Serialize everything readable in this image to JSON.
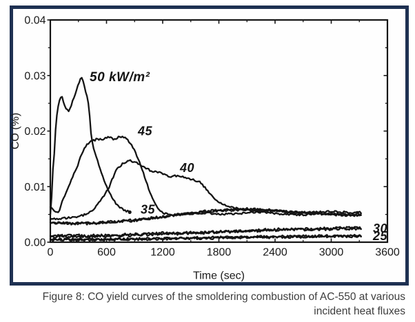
{
  "figure": {
    "caption_line1": "Figure 8: CO yield curves of the smoldering combustion of AC-550 at various",
    "caption_line2": "incident heat fluxes",
    "border_color": "#1e3152"
  },
  "chart_data": {
    "type": "line",
    "title": "",
    "xlabel": "Time (sec)",
    "ylabel": "CO (%)",
    "xlim": [
      0,
      3600
    ],
    "ylim": [
      0,
      0.04
    ],
    "x_ticks": [
      0,
      600,
      1200,
      1800,
      2400,
      3000,
      3600
    ],
    "x_tick_labels": [
      "0",
      "600",
      "1200",
      "1800",
      "2400",
      "3000",
      "3600"
    ],
    "x_minor_step": 300,
    "y_ticks": [
      0,
      0.01,
      0.02,
      0.03,
      0.04
    ],
    "y_tick_labels": [
      "0.00",
      "0.01",
      "0.02",
      "0.03",
      "0.04"
    ],
    "y_minor_step": 0.005,
    "grid": false,
    "frame": "closed box with ticks on all four sides",
    "legend": "in-plot italic labels next to each curve",
    "line_color": "#151515",
    "note": "noisy scanned black traces; heat-flux units kW/m²; traces end near t=3320 s",
    "series": [
      {
        "id": "hf50",
        "name": "50 kW/m²",
        "label": "50 kW/m²",
        "label_at": [
          420,
          0.0297
        ],
        "points": [
          [
            0,
            0.005
          ],
          [
            10,
            0.007
          ],
          [
            18,
            0.0095
          ],
          [
            25,
            0.0125
          ],
          [
            37,
            0.0147
          ],
          [
            52,
            0.0184
          ],
          [
            60,
            0.0217
          ],
          [
            88,
            0.025
          ],
          [
            118,
            0.0265
          ],
          [
            150,
            0.0248
          ],
          [
            175,
            0.0238
          ],
          [
            200,
            0.0235
          ],
          [
            240,
            0.0255
          ],
          [
            280,
            0.0273
          ],
          [
            310,
            0.0289
          ],
          [
            332,
            0.0297
          ],
          [
            352,
            0.0288
          ],
          [
            372,
            0.0276
          ],
          [
            392,
            0.0262
          ],
          [
            408,
            0.0247
          ],
          [
            420,
            0.0228
          ],
          [
            430,
            0.02
          ],
          [
            448,
            0.018
          ],
          [
            475,
            0.0161
          ],
          [
            505,
            0.0146
          ],
          [
            535,
            0.0131
          ],
          [
            565,
            0.0116
          ],
          [
            605,
            0.0098
          ],
          [
            645,
            0.0085
          ],
          [
            685,
            0.0073
          ],
          [
            725,
            0.0065
          ],
          [
            785,
            0.0058
          ],
          [
            848,
            0.0054
          ]
        ]
      },
      {
        "id": "hf45",
        "name": "45 kW/m²",
        "label": "45",
        "label_at": [
          935,
          0.02
        ],
        "points": [
          [
            0,
            0.0064
          ],
          [
            55,
            0.0056
          ],
          [
            90,
            0.0054
          ],
          [
            135,
            0.0077
          ],
          [
            185,
            0.0097
          ],
          [
            235,
            0.0116
          ],
          [
            290,
            0.0137
          ],
          [
            330,
            0.0158
          ],
          [
            385,
            0.0175
          ],
          [
            435,
            0.0181
          ],
          [
            500,
            0.0186
          ],
          [
            560,
            0.0184
          ],
          [
            620,
            0.019
          ],
          [
            680,
            0.0185
          ],
          [
            740,
            0.0191
          ],
          [
            800,
            0.0188
          ],
          [
            830,
            0.0183
          ],
          [
            870,
            0.0174
          ],
          [
            910,
            0.0161
          ],
          [
            950,
            0.0146
          ],
          [
            990,
            0.0126
          ],
          [
            1030,
            0.0106
          ],
          [
            1070,
            0.0087
          ],
          [
            1110,
            0.0071
          ],
          [
            1155,
            0.006
          ],
          [
            1215,
            0.0052
          ],
          [
            1285,
            0.0048
          ],
          [
            1450,
            0.0051
          ],
          [
            1650,
            0.0053
          ],
          [
            1850,
            0.005
          ],
          [
            2050,
            0.0052
          ],
          [
            2250,
            0.0054
          ],
          [
            2450,
            0.0051
          ],
          [
            2650,
            0.0049
          ],
          [
            2850,
            0.0051
          ],
          [
            3050,
            0.005
          ],
          [
            3200,
            0.0048
          ],
          [
            3320,
            0.0049
          ]
        ]
      },
      {
        "id": "hf40",
        "name": "40 kW/m²",
        "label": "40",
        "label_at": [
          1384,
          0.0134
        ],
        "points": [
          [
            0,
            0.0042
          ],
          [
            150,
            0.0043
          ],
          [
            300,
            0.0046
          ],
          [
            400,
            0.0051
          ],
          [
            480,
            0.0062
          ],
          [
            560,
            0.008
          ],
          [
            630,
            0.01
          ],
          [
            680,
            0.0121
          ],
          [
            720,
            0.0134
          ],
          [
            780,
            0.0142
          ],
          [
            860,
            0.0147
          ],
          [
            920,
            0.0143
          ],
          [
            1000,
            0.0134
          ],
          [
            1100,
            0.0127
          ],
          [
            1200,
            0.0124
          ],
          [
            1280,
            0.0118
          ],
          [
            1360,
            0.012
          ],
          [
            1490,
            0.0114
          ],
          [
            1610,
            0.0107
          ],
          [
            1680,
            0.0092
          ],
          [
            1745,
            0.0079
          ],
          [
            1820,
            0.007
          ],
          [
            1930,
            0.0064
          ],
          [
            2060,
            0.0058
          ],
          [
            2200,
            0.0056
          ],
          [
            2400,
            0.0057
          ],
          [
            2600,
            0.0054
          ],
          [
            2800,
            0.0054
          ],
          [
            3000,
            0.0056
          ],
          [
            3200,
            0.0053
          ],
          [
            3320,
            0.0054
          ]
        ]
      },
      {
        "id": "hf35",
        "name": "35 kW/m²",
        "label": "35",
        "label_at": [
          964,
          0.0059
        ],
        "points": [
          [
            0,
            0.0036
          ],
          [
            300,
            0.0034
          ],
          [
            600,
            0.0036
          ],
          [
            900,
            0.004
          ],
          [
            1200,
            0.0046
          ],
          [
            1500,
            0.0053
          ],
          [
            1800,
            0.0058
          ],
          [
            2100,
            0.006
          ],
          [
            2350,
            0.0058
          ],
          [
            2600,
            0.0054
          ],
          [
            2900,
            0.0052
          ],
          [
            3150,
            0.005
          ],
          [
            3320,
            0.005
          ]
        ]
      },
      {
        "id": "hf30",
        "name": "30 kW/m²",
        "label": "30",
        "label_at": [
          3445,
          0.0025
        ],
        "points": [
          [
            0,
            0.0011
          ],
          [
            300,
            0.0012
          ],
          [
            600,
            0.0012
          ],
          [
            900,
            0.0014
          ],
          [
            1200,
            0.0016
          ],
          [
            1500,
            0.0017
          ],
          [
            1800,
            0.0019
          ],
          [
            2100,
            0.0021
          ],
          [
            2400,
            0.0023
          ],
          [
            2700,
            0.0024
          ],
          [
            3000,
            0.0025
          ],
          [
            3320,
            0.0026
          ]
        ]
      },
      {
        "id": "hf25",
        "name": "25 kW/m²",
        "label": "25",
        "label_at": [
          3445,
          0.0011
        ],
        "points": [
          [
            0,
            0.0005
          ],
          [
            400,
            0.0005
          ],
          [
            800,
            0.0006
          ],
          [
            1200,
            0.0007
          ],
          [
            1600,
            0.0008
          ],
          [
            2000,
            0.0009
          ],
          [
            2400,
            0.001
          ],
          [
            2800,
            0.0011
          ],
          [
            3320,
            0.0012
          ]
        ]
      }
    ]
  }
}
